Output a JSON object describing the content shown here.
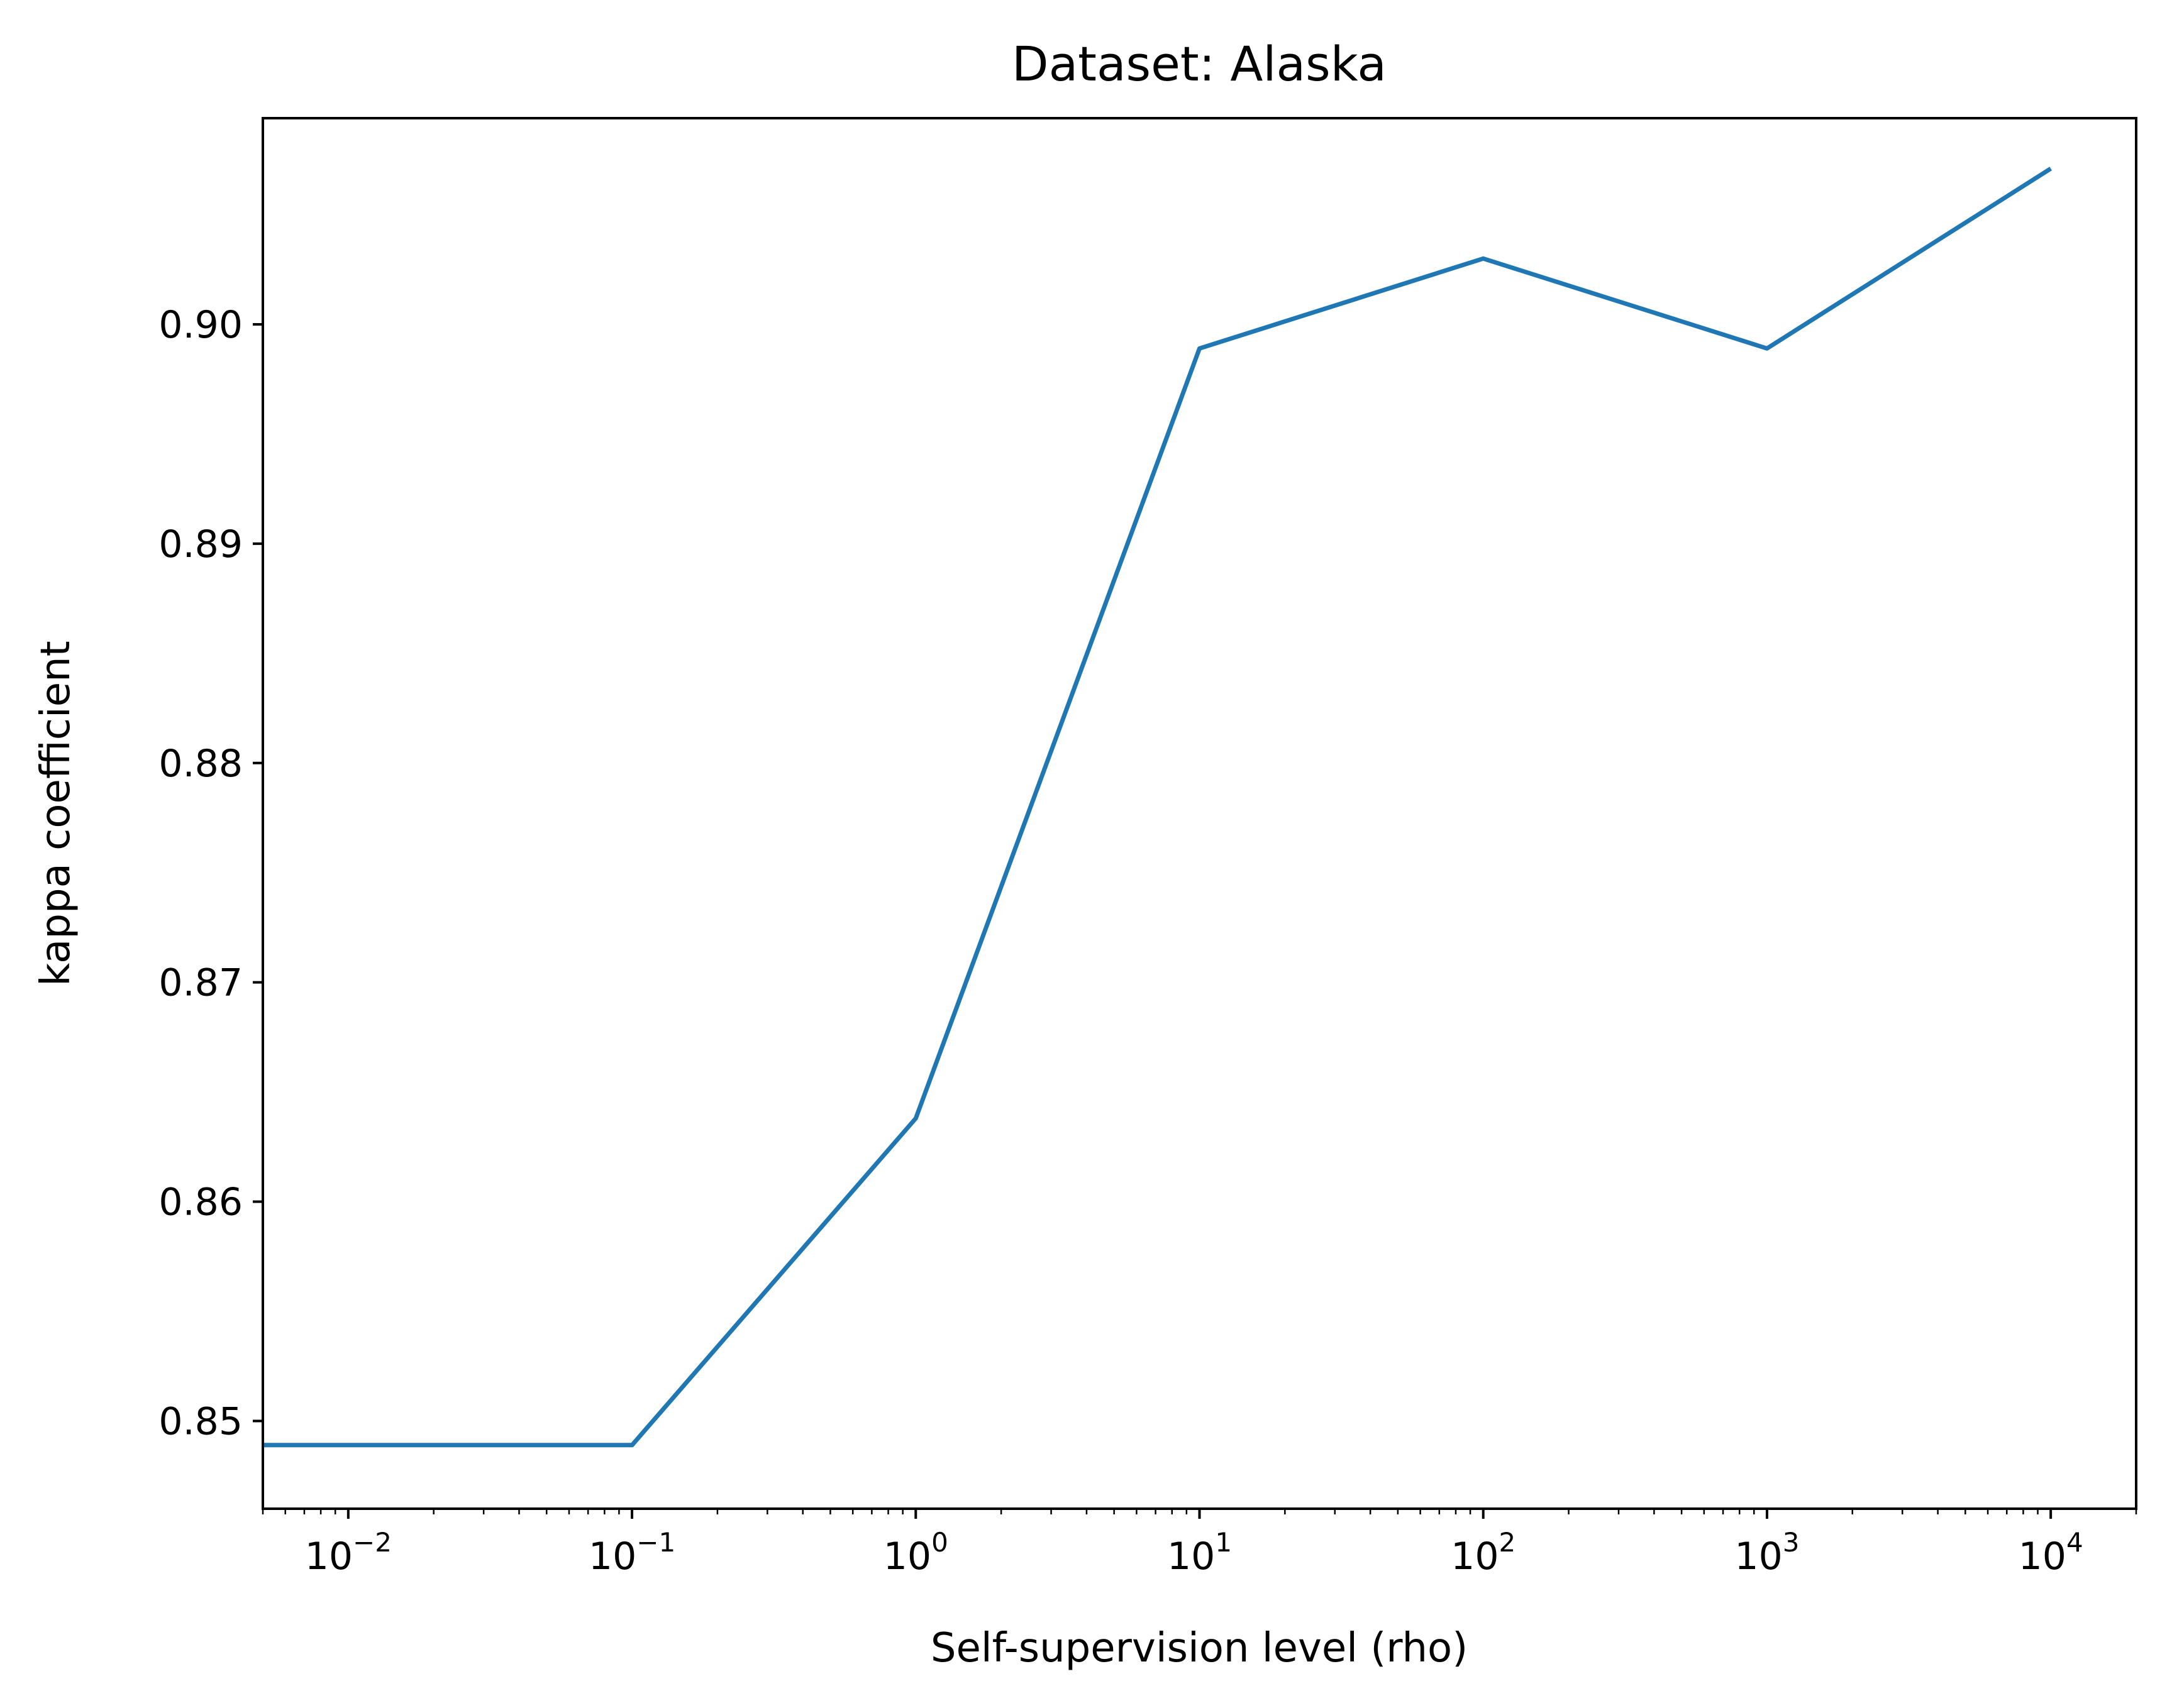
{
  "chart_data": {
    "type": "line",
    "title": "Dataset: Alaska",
    "xlabel": "Self-supervision level (rho)",
    "ylabel": "kappa coefficient",
    "xscale": "log",
    "xlim": [
      0.005,
      20000
    ],
    "ylim": [
      0.846,
      0.9094
    ],
    "x_ticks": [
      {
        "value": 0.01,
        "base": "10",
        "exp": "−2"
      },
      {
        "value": 0.1,
        "base": "10",
        "exp": "−1"
      },
      {
        "value": 1,
        "base": "10",
        "exp": "0"
      },
      {
        "value": 10,
        "base": "10",
        "exp": "1"
      },
      {
        "value": 100,
        "base": "10",
        "exp": "2"
      },
      {
        "value": 1000,
        "base": "10",
        "exp": "3"
      },
      {
        "value": 10000,
        "base": "10",
        "exp": "4"
      }
    ],
    "y_ticks": [
      {
        "value": 0.85,
        "label": "0.85"
      },
      {
        "value": 0.86,
        "label": "0.86"
      },
      {
        "value": 0.87,
        "label": "0.87"
      },
      {
        "value": 0.88,
        "label": "0.88"
      },
      {
        "value": 0.89,
        "label": "0.89"
      },
      {
        "value": 0.9,
        "label": "0.90"
      }
    ],
    "grid": false,
    "series": [
      {
        "color": "#1f77b4",
        "x": [
          0.005,
          0.1,
          1,
          10,
          100,
          1000,
          10000
        ],
        "y": [
          0.8489,
          0.8489,
          0.8638,
          0.8989,
          0.903,
          0.8989,
          0.9071
        ]
      }
    ]
  }
}
